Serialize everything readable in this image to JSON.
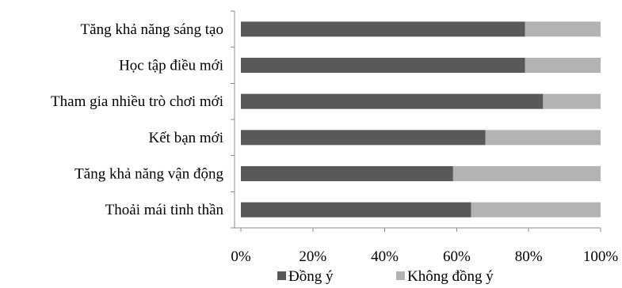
{
  "chart_data": {
    "type": "bar",
    "orientation": "horizontal",
    "stacked": "percent",
    "categories": [
      "Tăng khả năng sáng tạo",
      "Học tập điều mới",
      "Tham gia nhiều trò chơi mới",
      "Kết bạn mới",
      "Tăng khả năng vận động",
      "Thoải mái tinh thần"
    ],
    "series": [
      {
        "name": "Đồng ý",
        "color": "#595959",
        "values": [
          79,
          79,
          84,
          68,
          59,
          64
        ]
      },
      {
        "name": "Không đồng ý",
        "color": "#b3b3b3",
        "values": [
          21,
          21,
          16,
          32,
          41,
          36
        ]
      }
    ],
    "xlim": [
      0,
      100
    ],
    "xticks": [
      "0%",
      "20%",
      "40%",
      "60%",
      "80%",
      "100%"
    ],
    "title": "",
    "xlabel": "",
    "ylabel": "",
    "grid": false,
    "legend_position": "bottom"
  }
}
